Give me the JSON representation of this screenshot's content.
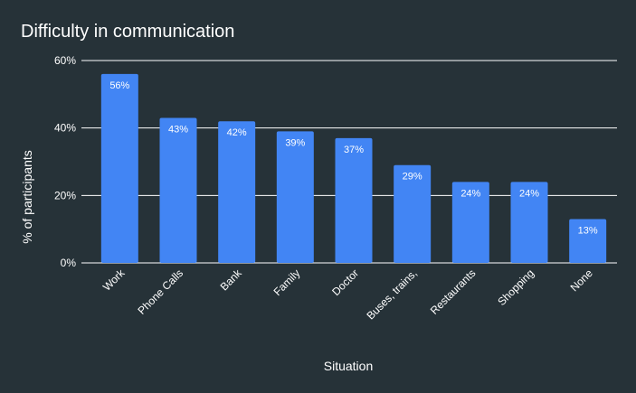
{
  "chart_data": {
    "type": "bar",
    "title": "Difficulty in communication",
    "xlabel": "Situation",
    "ylabel": "% of participants",
    "categories": [
      "Work",
      "Phone Calls",
      "Bank",
      "Family",
      "Doctor",
      "Buses, trains,",
      "Restaurants",
      "Shopping",
      "None"
    ],
    "values": [
      56,
      43,
      42,
      39,
      37,
      29,
      24,
      24,
      13
    ],
    "data_labels": [
      "56%",
      "43%",
      "42%",
      "39%",
      "37%",
      "29%",
      "24%",
      "24%",
      "13%"
    ],
    "yticks": [
      "0%",
      "20%",
      "40%",
      "60%"
    ],
    "ytick_values": [
      0,
      20,
      40,
      60
    ],
    "ylim": [
      0,
      60
    ],
    "grid": true,
    "legend": "none",
    "colors": {
      "background": "#263238",
      "bar": "#4285f4",
      "text": "#ffffff",
      "grid": "#ffffff"
    }
  }
}
